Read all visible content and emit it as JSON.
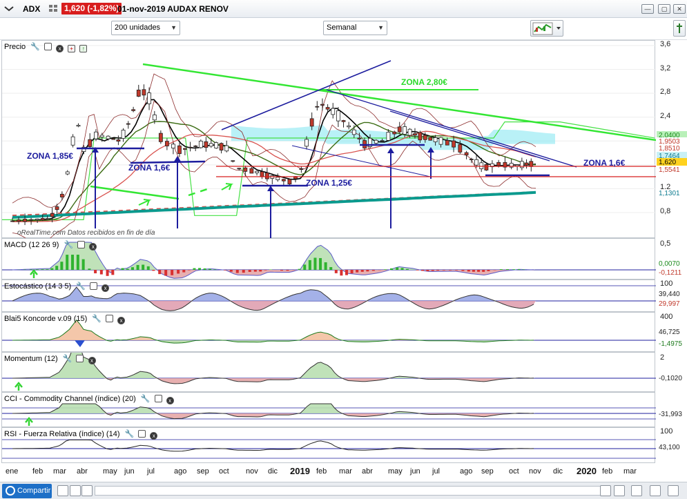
{
  "header": {
    "ticker": "ADX",
    "price_badge": "1,620 (-1,82%)",
    "date_title": "01-nov-2019 AUDAX RENOV"
  },
  "toolbar": {
    "units_select": "200 unidades",
    "period_select": "Semanal"
  },
  "panels": {
    "price": {
      "title": "Precio",
      "watermark": "oRealTime.com  Datos recibidos en fin de día"
    },
    "macd": {
      "title": "MACD (12 26 9)"
    },
    "stoch": {
      "title": "Estocástico (14 3 5)"
    },
    "koncorde": {
      "title": "Blai5 Koncorde v.09 (15)"
    },
    "momentum": {
      "title": "Momentum (12)"
    },
    "cci": {
      "title": "CCI - Commodity Channel (índice) (20)"
    },
    "rsi": {
      "title": "RSI - Fuerza Relativa (índice) (14)"
    }
  },
  "annotations": {
    "zona_280": "ZONA 2,80€",
    "zona_185": "ZONA 1,85€",
    "zona_16_left": "ZONA 1,6€",
    "zona_125": "ZONA 1,25€",
    "zona_16_right": "ZONA 1,6€"
  },
  "axes": {
    "price_ticks": [
      "3,6",
      "3,2",
      "2,8",
      "2,4",
      "2",
      "1,6",
      "1,2",
      "0,8"
    ],
    "price_tags": [
      "2,0400",
      "1,9503",
      "1,8510",
      "1,7464",
      "1,620",
      "1,5541",
      "1,1301"
    ],
    "macd_ticks": [
      "0,5"
    ],
    "macd_tags": [
      "0,0070",
      "-0,1211"
    ],
    "stoch_ticks": [
      "100"
    ],
    "stoch_tags": [
      "39,440",
      "29,997"
    ],
    "koncorde_ticks": [
      "400"
    ],
    "koncorde_tags": [
      "46,725",
      "-1,4975"
    ],
    "momentum_ticks": [
      "2"
    ],
    "momentum_tags": [
      "-0,1020"
    ],
    "cci_tags": [
      "-31,993"
    ],
    "rsi_ticks": [
      "100"
    ],
    "rsi_tags": [
      "43,100"
    ]
  },
  "time_axis": {
    "labels": [
      "ene",
      "feb",
      "mar",
      "abr",
      "may",
      "jun",
      "jul",
      "ago",
      "sep",
      "oct",
      "nov",
      "dic",
      "2019",
      "feb",
      "mar",
      "abr",
      "may",
      "jun",
      "jul",
      "ago",
      "sep",
      "oct",
      "nov",
      "dic",
      "2020",
      "feb",
      "mar"
    ]
  },
  "bottom": {
    "share_label": "Compartir"
  },
  "colors": {
    "up_candle": "#ffffff",
    "down_candle": "#c0392b",
    "ma_fast": "#000000",
    "ma_mid": "#3a6b12",
    "ma_slow": "#d9534f",
    "ma_long": "#0b9a8e",
    "trend_green": "#33e633",
    "trend_blue": "#1c1c9e",
    "cloud": "#7fe6f0",
    "price_line": "#d81e1e"
  },
  "chart_data": {
    "type": "line",
    "title": "ADX",
    "x": [
      "2018-01",
      "2018-02",
      "2018-03",
      "2018-04",
      "2018-05",
      "2018-06",
      "2018-07",
      "2018-08",
      "2018-09",
      "2018-10",
      "2018-11",
      "2018-12",
      "2019-01",
      "2019-02",
      "2019-03",
      "2019-04",
      "2019-05",
      "2019-06",
      "2019-07",
      "2019-08",
      "2019-09",
      "2019-10",
      "2019-11"
    ],
    "series": [
      {
        "name": "Precio",
        "values": [
          0.66,
          0.68,
          0.95,
          1.85,
          2.05,
          2.8,
          1.9,
          1.95,
          1.9,
          1.95,
          1.55,
          1.35,
          1.5,
          2.6,
          2.3,
          2.0,
          2.1,
          2.05,
          1.95,
          1.75,
          1.6,
          1.58,
          1.62
        ]
      }
    ],
    "ylim": [
      0.6,
      3.6
    ],
    "price_last": 1.62
  }
}
